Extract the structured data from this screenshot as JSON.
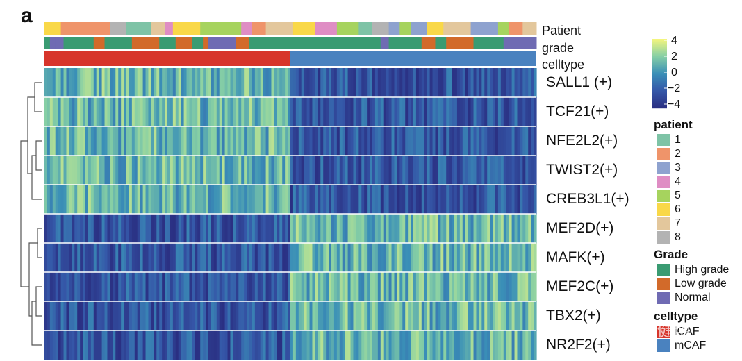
{
  "panel_label": "a",
  "watermark": "知乎 @曾健明",
  "chart_data": {
    "type": "heatmap",
    "rows": [
      "SALL1 (+)",
      "TCF21(+)",
      "NFE2L2(+)",
      "TWIST2(+)",
      "CREB3L1(+)",
      "MEF2D(+)",
      "MAFK(+)",
      "MEF2C(+)",
      "TBX2(+)",
      "NR2F2(+)"
    ],
    "annotation_tracks": [
      "Patient",
      "grade",
      "celltype"
    ],
    "column_groups": [
      {
        "celltype": "iCAF",
        "fraction": 0.5
      },
      {
        "celltype": "mCAF",
        "fraction": 0.5
      }
    ],
    "row_pattern_by_group": {
      "iCAF": [
        "high",
        "high",
        "high",
        "high",
        "high",
        "low",
        "low",
        "low",
        "low",
        "low"
      ],
      "mCAF": [
        "low",
        "low",
        "low",
        "low",
        "low",
        "high",
        "high",
        "high",
        "high",
        "high"
      ]
    },
    "color_scale": {
      "min": -4,
      "max": 4,
      "ticks": [
        "4",
        "2",
        "0",
        "−2",
        "−4"
      ],
      "colors": [
        "#2a2f82",
        "#3557a8",
        "#3a8fb7",
        "#86cfa5",
        "#f3f57e"
      ]
    },
    "dendrogram": "rows"
  },
  "legends": {
    "patient": {
      "title": "patient",
      "items": [
        {
          "label": "1",
          "color": "#7ec3a6"
        },
        {
          "label": "2",
          "color": "#ef946a"
        },
        {
          "label": "3",
          "color": "#8ea2cf"
        },
        {
          "label": "4",
          "color": "#df8dc4"
        },
        {
          "label": "5",
          "color": "#a6d35e"
        },
        {
          "label": "6",
          "color": "#f9d848"
        },
        {
          "label": "7",
          "color": "#e3c79c"
        },
        {
          "label": "8",
          "color": "#b3b3b3"
        }
      ]
    },
    "grade": {
      "title": "Grade",
      "items": [
        {
          "label": "High grade",
          "color": "#3a9b72"
        },
        {
          "label": "Low grade",
          "color": "#d26a2a"
        },
        {
          "label": "Normal",
          "color": "#6f6bb3"
        }
      ]
    },
    "celltype": {
      "title": "celltype",
      "items": [
        {
          "label": "iCAF",
          "color": "#d7352b"
        },
        {
          "label": "mCAF",
          "color": "#4a82bf"
        }
      ]
    }
  }
}
